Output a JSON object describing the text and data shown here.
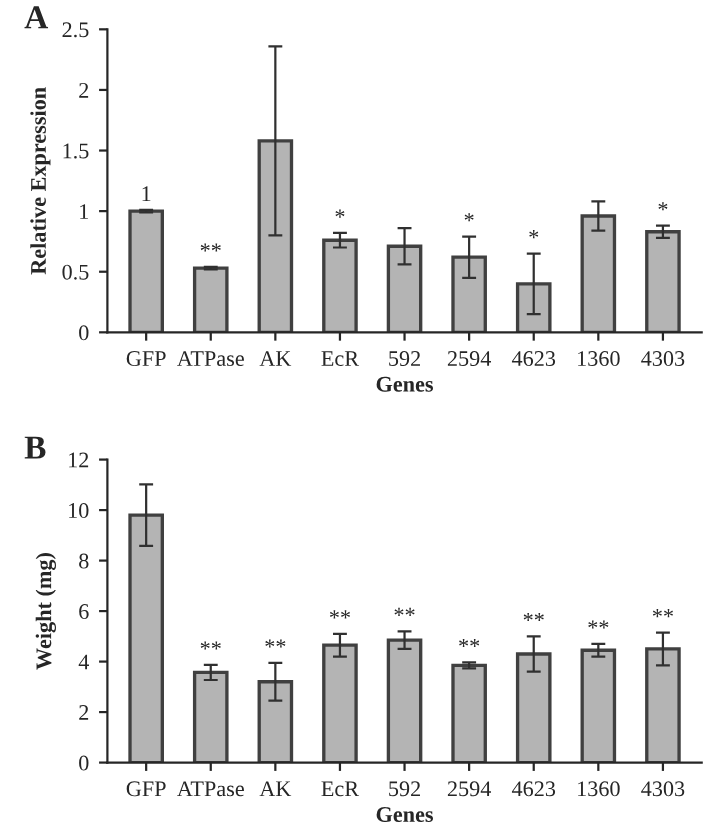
{
  "chart_data": [
    {
      "type": "bar",
      "title": "A",
      "xlabel": "Genes",
      "ylabel": "Relative Expression",
      "categories": [
        "GFP",
        "ATPase",
        "AK",
        "EcR",
        "592",
        "2594",
        "4623",
        "1360",
        "4303"
      ],
      "values": [
        1.0,
        0.53,
        1.58,
        0.76,
        0.71,
        0.62,
        0.4,
        0.96,
        0.83
      ],
      "errors": [
        0.01,
        0.01,
        0.78,
        0.06,
        0.15,
        0.17,
        0.25,
        0.12,
        0.05
      ],
      "color": "#b4b4b4",
      "ylim": [
        0,
        2.5
      ],
      "yticks": [
        0,
        0.5,
        1,
        1.5,
        2,
        2.5
      ],
      "annotations": [
        {
          "text": "1",
          "x": "GFP",
          "y": 1.01
        },
        {
          "text": "**",
          "x": "ATPase",
          "y": 0.54
        },
        {
          "text": "*",
          "x": "EcR",
          "y": 0.82
        },
        {
          "text": "*",
          "x": "2594",
          "y": 0.79
        },
        {
          "text": "*",
          "x": "4623",
          "y": 0.65
        },
        {
          "text": "*",
          "x": "4303",
          "y": 0.88
        }
      ]
    },
    {
      "type": "bar",
      "title": "B",
      "xlabel": "Genes",
      "ylabel": "Weight (mg)",
      "categories": [
        "GFP",
        "ATPase",
        "AK",
        "EcR",
        "592",
        "2594",
        "4623",
        "1360",
        "4303"
      ],
      "values": [
        9.8,
        3.57,
        3.2,
        4.65,
        4.85,
        3.85,
        4.3,
        4.45,
        4.5
      ],
      "errors": [
        1.22,
        0.3,
        0.75,
        0.45,
        0.35,
        0.12,
        0.7,
        0.25,
        0.65
      ],
      "color": "#b4b4b4",
      "ylim": [
        0,
        12
      ],
      "yticks": [
        0,
        2,
        4,
        6,
        8,
        10,
        12
      ],
      "annotations": [
        {
          "text": "**",
          "x": "ATPase",
          "y": 3.87
        },
        {
          "text": "**",
          "x": "AK",
          "y": 3.95
        },
        {
          "text": "**",
          "x": "EcR",
          "y": 5.1
        },
        {
          "text": "**",
          "x": "592",
          "y": 5.2
        },
        {
          "text": "**",
          "x": "2594",
          "y": 3.97
        },
        {
          "text": "**",
          "x": "4623",
          "y": 5.0
        },
        {
          "text": "**",
          "x": "1360",
          "y": 4.7
        },
        {
          "text": "**",
          "x": "4303",
          "y": 5.15
        }
      ]
    }
  ]
}
